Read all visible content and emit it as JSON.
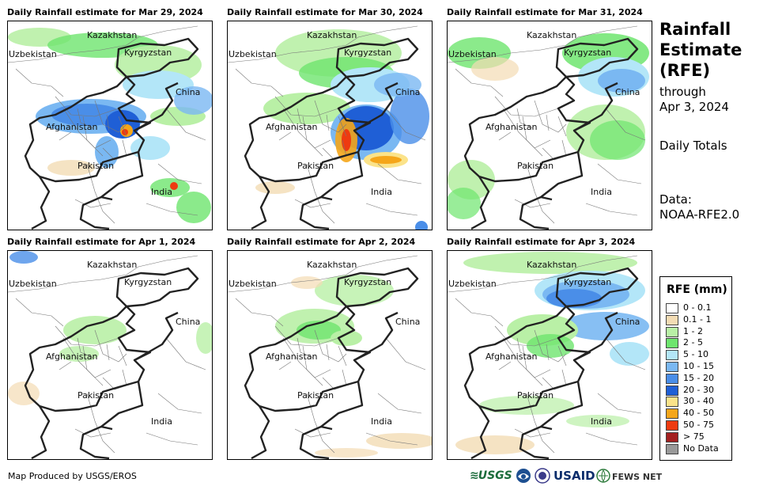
{
  "panels": [
    {
      "title": "Daily Rainfall estimate for Mar 29, 2024",
      "date": "Mar 29, 2024"
    },
    {
      "title": "Daily Rainfall estimate for Mar 30, 2024",
      "date": "Mar 30, 2024"
    },
    {
      "title": "Daily Rainfall estimate for Mar 31, 2024",
      "date": "Mar 31, 2024"
    },
    {
      "title": "Daily Rainfall estimate for Apr 1, 2024",
      "date": "Apr 1, 2024"
    },
    {
      "title": "Daily Rainfall estimate for Apr 2, 2024",
      "date": "Apr 2, 2024"
    },
    {
      "title": "Daily Rainfall estimate for Apr 3, 2024",
      "date": "Apr 3, 2024"
    }
  ],
  "places": {
    "kazakhstan": "Kazakhstan",
    "uzbekistan": "Uzbekistan",
    "kyrgyzstan": "Kyrgyzstan",
    "china": "China",
    "afghanistan": "Afghanistan",
    "pakistan": "Pakistan",
    "india": "India"
  },
  "sidebar": {
    "title_line1": "Rainfall",
    "title_line2": "Estimate",
    "title_line3": "(RFE)",
    "through": "through",
    "through_date": "Apr 3, 2024",
    "daily_totals": "Daily Totals",
    "data_label": "Data:",
    "data_source": "NOAA-RFE2.0"
  },
  "legend": {
    "title": "RFE (mm)",
    "items": [
      {
        "label": "0 - 0.1",
        "color": "#ffffff"
      },
      {
        "label": "0.1 - 1",
        "color": "#f3dcb4"
      },
      {
        "label": "1 - 2",
        "color": "#b9f0a6"
      },
      {
        "label": "2 - 5",
        "color": "#6ee56e"
      },
      {
        "label": "5 - 10",
        "color": "#b3e6f8"
      },
      {
        "label": "10 - 15",
        "color": "#7ab8f2"
      },
      {
        "label": "15 - 20",
        "color": "#4a8ee8"
      },
      {
        "label": "20 - 30",
        "color": "#1f5fd6"
      },
      {
        "label": "30 - 40",
        "color": "#fbe38a"
      },
      {
        "label": "40 - 50",
        "color": "#f5a61a"
      },
      {
        "label": "50 - 75",
        "color": "#ee3b10"
      },
      {
        "label": "> 75",
        "color": "#a32020"
      },
      {
        "label": "No Data",
        "color": "#999999"
      }
    ]
  },
  "footer": {
    "credit": "Map Produced by USGS/EROS",
    "logo_usgs": "USGS",
    "logo_usaid": "USAID",
    "logo_fewsnet": "FEWS NET"
  }
}
